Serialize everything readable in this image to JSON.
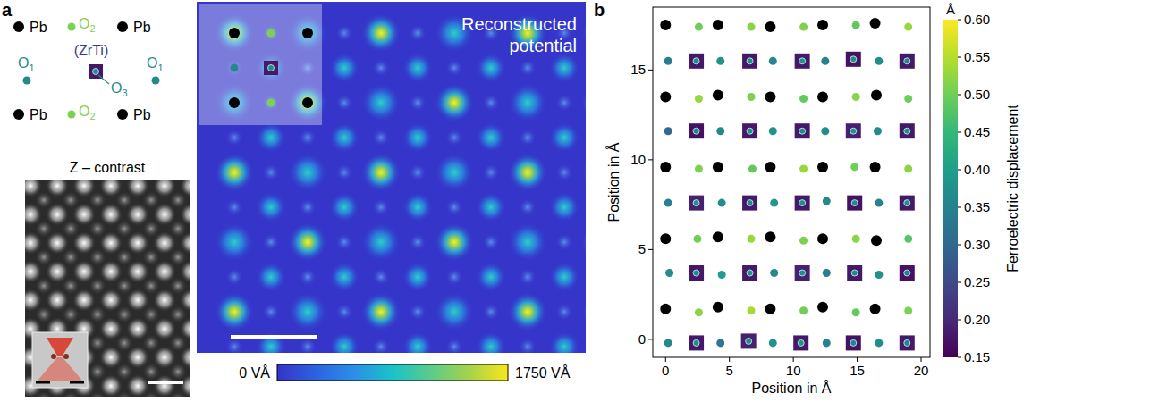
{
  "panel_a": {
    "letter": "a",
    "z_contrast_label": "Z – contrast",
    "potential_title": "Reconstructed potential",
    "colorbar": {
      "range": [
        0,
        1750
      ],
      "ticks": [
        {
          "value": 0,
          "label": "0 VÅ"
        },
        {
          "value": 1750,
          "label": "1750 VÅ"
        }
      ]
    }
  },
  "chart_data": {
    "type": "scatter",
    "letter": "b",
    "x_label": "Position in Å",
    "y_label": "Position in Å",
    "xlim": [
      -1,
      20.7
    ],
    "ylim": [
      -1,
      18.5
    ],
    "xticks": [
      0,
      5,
      10,
      15,
      20
    ],
    "yticks": [
      0,
      5,
      10,
      15
    ],
    "series": [
      {
        "name": "Pb",
        "color": "#000000",
        "marker": "circle",
        "x": [
          0,
          4.1,
          8.2,
          12.3,
          16.4,
          0,
          4.1,
          8.2,
          12.3,
          16.5,
          0,
          4.1,
          8.2,
          12.3,
          16.4,
          0,
          4.1,
          8.2,
          12.3,
          16.5,
          0,
          4.1,
          8.2,
          12.3,
          16.4
        ],
        "y": [
          1.7,
          1.8,
          1.7,
          1.8,
          1.7,
          5.6,
          5.7,
          5.7,
          5.6,
          5.5,
          9.6,
          9.6,
          9.6,
          9.6,
          9.6,
          13.5,
          13.6,
          13.5,
          13.5,
          13.6,
          17.5,
          17.5,
          17.4,
          17.5,
          17.6
        ]
      },
      {
        "name": "O1",
        "marker": "circle",
        "x": [
          0.2,
          4.3,
          8.4,
          12.6,
          16.7,
          0.3,
          4.4,
          8.5,
          12.6,
          16.7,
          0.2,
          4.4,
          8.5,
          12.6,
          16.7,
          0.2,
          4.3,
          8.4,
          12.5,
          16.6,
          0.2,
          4.3,
          8.4,
          12.5,
          16.7
        ],
        "y": [
          -0.2,
          -0.2,
          -0.2,
          -0.2,
          -0.2,
          3.7,
          3.6,
          3.7,
          3.7,
          3.6,
          7.6,
          7.6,
          7.6,
          7.7,
          7.6,
          11.6,
          11.6,
          11.6,
          11.6,
          11.6,
          15.5,
          15.5,
          15.5,
          15.5,
          15.5
        ],
        "displacement": [
          0.36,
          0.33,
          0.38,
          0.35,
          0.37,
          0.37,
          0.4,
          0.36,
          0.34,
          0.38,
          0.35,
          0.37,
          0.39,
          0.36,
          0.35,
          0.3,
          0.36,
          0.38,
          0.37,
          0.36,
          0.34,
          0.38,
          0.36,
          0.35,
          0.37
        ]
      },
      {
        "name": "O2",
        "marker": "circle",
        "x": [
          2.6,
          6.7,
          10.8,
          14.9,
          19.0,
          2.5,
          6.7,
          10.8,
          14.9,
          19.0,
          2.6,
          6.8,
          10.8,
          14.8,
          19.0,
          2.6,
          6.7,
          10.8,
          14.9,
          19.0,
          2.6,
          6.7,
          10.8,
          14.9,
          19.0
        ],
        "y": [
          1.5,
          1.6,
          1.6,
          1.5,
          1.6,
          5.6,
          5.6,
          5.5,
          5.6,
          5.6,
          9.5,
          9.5,
          9.5,
          9.6,
          9.5,
          13.4,
          13.5,
          13.4,
          13.5,
          13.4,
          17.4,
          17.4,
          17.4,
          17.5,
          17.4
        ],
        "displacement": [
          0.52,
          0.54,
          0.5,
          0.49,
          0.51,
          0.5,
          0.53,
          0.51,
          0.52,
          0.48,
          0.51,
          0.49,
          0.53,
          0.5,
          0.52,
          0.53,
          0.51,
          0.49,
          0.52,
          0.5,
          0.5,
          0.52,
          0.51,
          0.49,
          0.53
        ]
      },
      {
        "name": "(ZrTi)",
        "marker": "square",
        "x": [
          2.4,
          6.5,
          10.6,
          14.7,
          18.9,
          2.4,
          6.6,
          10.7,
          14.8,
          18.9,
          2.4,
          6.6,
          10.7,
          14.8,
          18.9,
          2.4,
          6.6,
          10.7,
          14.7,
          18.9,
          2.4,
          6.6,
          10.7,
          14.7,
          18.9
        ],
        "y": [
          -0.2,
          -0.1,
          -0.2,
          -0.2,
          -0.2,
          3.7,
          3.7,
          3.7,
          3.7,
          3.7,
          7.6,
          7.6,
          7.6,
          7.6,
          7.6,
          11.6,
          11.6,
          11.6,
          11.6,
          11.6,
          15.5,
          15.5,
          15.5,
          15.6,
          15.5
        ],
        "displacement": [
          0.18,
          0.19,
          0.18,
          0.17,
          0.18,
          0.18,
          0.18,
          0.19,
          0.18,
          0.17,
          0.19,
          0.18,
          0.18,
          0.17,
          0.18,
          0.17,
          0.18,
          0.18,
          0.19,
          0.18,
          0.18,
          0.18,
          0.18,
          0.17,
          0.18
        ]
      },
      {
        "name": "O3",
        "marker": "circle",
        "x": [
          2.4,
          6.5,
          10.6,
          14.7,
          18.9,
          2.4,
          6.6,
          10.7,
          14.8,
          18.9,
          2.4,
          6.6,
          10.7,
          14.8,
          18.9,
          2.4,
          6.6,
          10.7,
          14.7,
          18.9,
          2.4,
          6.6,
          10.7,
          14.7,
          18.9
        ],
        "y": [
          -0.2,
          -0.1,
          -0.2,
          -0.2,
          -0.2,
          3.7,
          3.7,
          3.7,
          3.7,
          3.7,
          7.6,
          7.6,
          7.6,
          7.6,
          7.6,
          11.6,
          11.6,
          11.6,
          11.6,
          11.6,
          15.5,
          15.5,
          15.5,
          15.6,
          15.5
        ],
        "displacement": [
          0.37,
          0.36,
          0.38,
          0.35,
          0.36,
          0.36,
          0.38,
          0.37,
          0.36,
          0.35,
          0.38,
          0.36,
          0.37,
          0.36,
          0.38,
          0.35,
          0.37,
          0.36,
          0.38,
          0.37,
          0.36,
          0.37,
          0.38,
          0.36,
          0.35
        ]
      }
    ],
    "colorbar": {
      "label": "Ferroelectric displacement",
      "unit": "Å",
      "range": [
        0.15,
        0.6
      ],
      "ticks": [
        0.15,
        {
          "value": 0.2,
          "label": "0.20"
        },
        0.25,
        {
          "value": 0.3,
          "label": "0.30"
        },
        0.35,
        {
          "value": 0.4,
          "label": "0.40"
        },
        0.45,
        {
          "value": 0.5,
          "label": "0.50"
        },
        0.55,
        {
          "value": 0.6,
          "label": "0.60"
        }
      ]
    }
  }
}
